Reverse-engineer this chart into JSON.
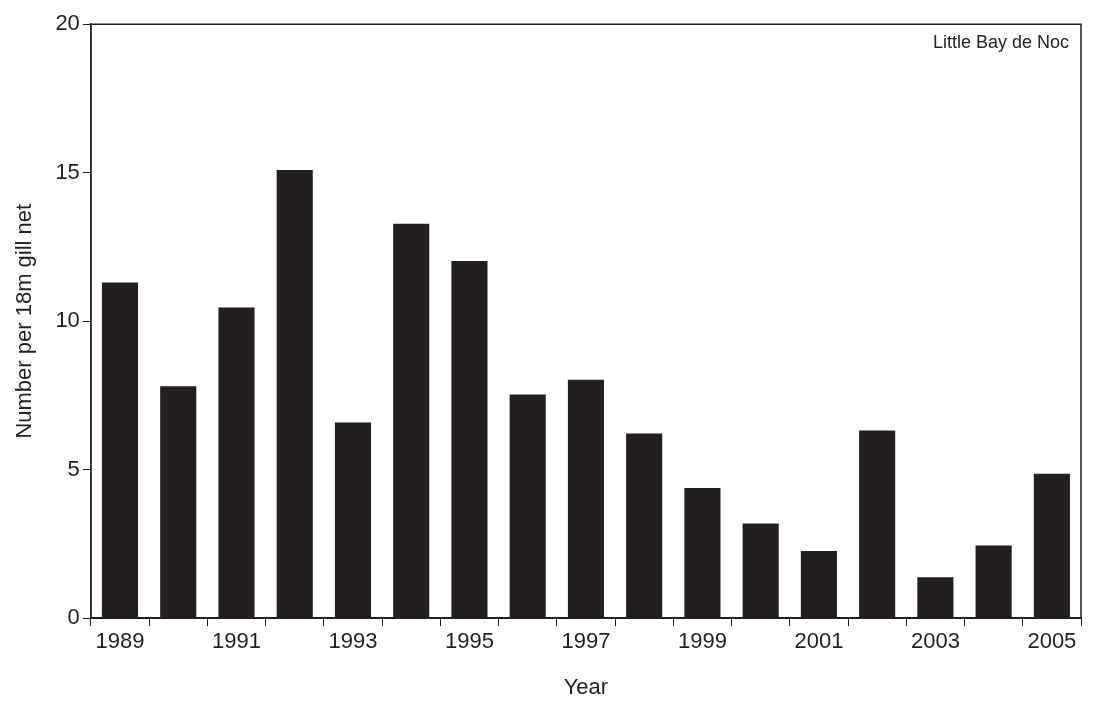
{
  "chart_data": {
    "type": "bar",
    "xlabel": "Year",
    "ylabel": "Number per 18m gill net",
    "categories": [
      "1989",
      null,
      "1991",
      null,
      "1993",
      null,
      "1995",
      null,
      "1997",
      null,
      "1999",
      null,
      "2001",
      null,
      "2003",
      null,
      "2005"
    ],
    "values": [
      11.3,
      7.81,
      10.46,
      15.09,
      6.59,
      13.28,
      12.03,
      7.53,
      8.03,
      6.22,
      4.38,
      3.19,
      2.26,
      6.32,
      1.38,
      2.45,
      4.86
    ],
    "color": "#231f20",
    "ylim": [
      0,
      20
    ],
    "yticks": [
      0,
      5,
      10,
      15,
      20
    ],
    "grid": false,
    "legend": false,
    "annotations": [
      "Little Bay de Noc"
    ]
  }
}
